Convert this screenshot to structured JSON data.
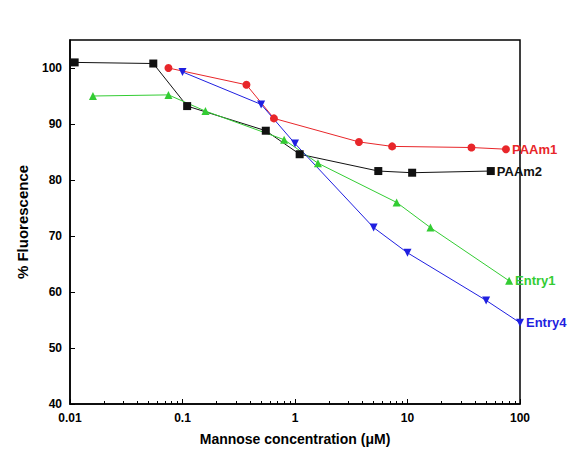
{
  "chart_data": {
    "type": "line",
    "x_label": "Mannose concentration (μM)",
    "y_label": "% Fluorescence",
    "log": "x",
    "grid": false,
    "xlim": [
      0.01,
      100
    ],
    "xticks": [
      0.01,
      0.1,
      1,
      10,
      100
    ],
    "ylim": [
      40,
      105
    ],
    "yticks": [
      40,
      50,
      60,
      70,
      80,
      90,
      100
    ],
    "series": [
      {
        "name": "PAAm1",
        "color": "#e8262a",
        "marker": "circle",
        "x": [
          0.075,
          0.37,
          0.65,
          3.7,
          7.3,
          37,
          75
        ],
        "values": [
          100,
          97,
          91,
          86.8,
          86,
          85.8,
          85.5
        ]
      },
      {
        "name": "PAAm2",
        "color": "#111111",
        "marker": "square",
        "x": [
          0.011,
          0.055,
          0.11,
          0.55,
          1.1,
          5.5,
          11,
          55
        ],
        "values": [
          101,
          100.8,
          93.2,
          88.8,
          84.6,
          81.6,
          81.3,
          81.6
        ]
      },
      {
        "name": "Entry1",
        "color": "#33cc33",
        "marker": "triangle",
        "x": [
          0.016,
          0.075,
          0.16,
          0.8,
          1.6,
          8,
          16,
          80
        ],
        "values": [
          95,
          95.2,
          92.3,
          87.2,
          83,
          76,
          71.5,
          62
        ]
      },
      {
        "name": "Entry4",
        "color": "#1f1fe0",
        "marker": "triangle-down",
        "x": [
          0.1,
          0.5,
          1,
          5,
          10,
          50,
          100
        ],
        "values": [
          99.3,
          93.5,
          86.5,
          71.5,
          67,
          58.5,
          54.5
        ]
      }
    ]
  }
}
